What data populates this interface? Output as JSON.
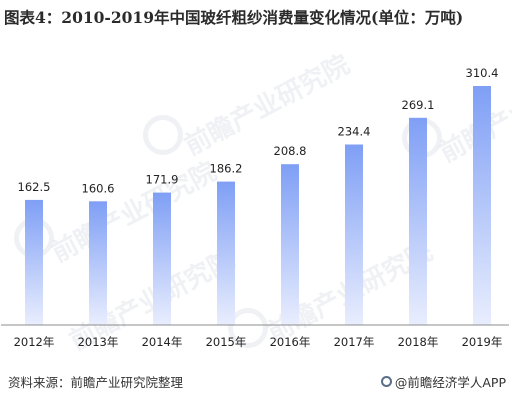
{
  "title": "图表4：2010-2019年中国玻纤粗纱消费量变化情况(单位：万吨)",
  "watermark_text": "前瞻产业研究院",
  "source": "资料来源：前瞻产业研究院整理",
  "brand": "@前瞻经济学人APP",
  "colors": {
    "bar_top": "#7f9ff5",
    "bar_bottom": "#e9eefe",
    "axis": "#8c8c8c",
    "text": "#222222"
  },
  "chart_data": {
    "type": "bar",
    "categories": [
      "2012年",
      "2013年",
      "2014年",
      "2015年",
      "2016年",
      "2017年",
      "2018年",
      "2019年"
    ],
    "values": [
      162.5,
      160.6,
      171.9,
      186.2,
      208.8,
      234.4,
      269.1,
      310.4
    ],
    "title": "图表4：2010-2019年中国玻纤粗纱消费量变化情况(单位：万吨)",
    "xlabel": "",
    "ylabel": "",
    "ylim": [
      0,
      310.4
    ],
    "grid": false,
    "legend": "none"
  }
}
